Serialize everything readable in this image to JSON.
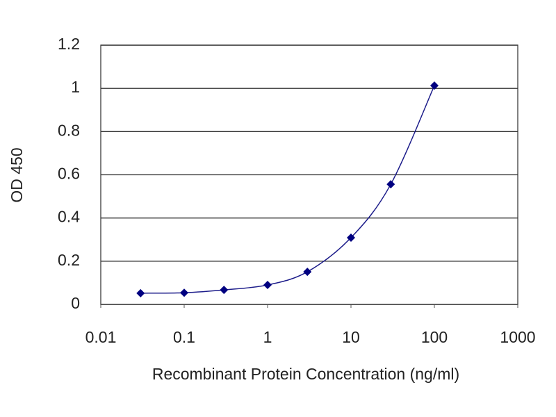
{
  "chart_data": {
    "type": "line",
    "xlabel": "Recombinant Protein Concentration (ng/ml)",
    "ylabel": "OD 450",
    "x": [
      0.03,
      0.1,
      0.3,
      1,
      3,
      10,
      30,
      100
    ],
    "values": [
      0.052,
      0.054,
      0.067,
      0.09,
      0.151,
      0.309,
      0.556,
      1.013
    ],
    "color": "#1c1c8a",
    "marker_color": "#000080",
    "xscale": "log",
    "xlim": [
      0.01,
      1000
    ],
    "xticks": [
      0.01,
      0.1,
      1,
      10,
      100,
      1000
    ],
    "ylim": [
      0,
      1.2
    ],
    "yticks": [
      0,
      0.2,
      0.4,
      0.6,
      0.8,
      1,
      1.2
    ],
    "grid": true
  }
}
